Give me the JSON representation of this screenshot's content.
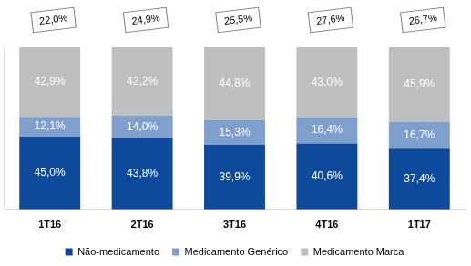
{
  "chart_data": {
    "type": "bar",
    "stacked": true,
    "categories": [
      "1T16",
      "2T16",
      "3T16",
      "4T16",
      "1T17"
    ],
    "series": [
      {
        "name": "Não-medicamento",
        "color": "#0d4a9b",
        "values": [
          45.0,
          43.8,
          39.9,
          40.6,
          37.4
        ],
        "value_labels": [
          "45,0%",
          "43,8%",
          "39,9%",
          "40,6%",
          "37,4%"
        ]
      },
      {
        "name": "Medicamento Genérico",
        "color": "#7f9fcf",
        "values": [
          12.1,
          14.0,
          15.3,
          16.4,
          16.7
        ],
        "value_labels": [
          "12,1%",
          "14,0%",
          "15,3%",
          "16,4%",
          "16,7%"
        ]
      },
      {
        "name": "Medicamento Marca",
        "color": "#bfbfbf",
        "values": [
          42.9,
          42.2,
          44.8,
          43.0,
          45.9
        ],
        "value_labels": [
          "42,9%",
          "42,2%",
          "44,8%",
          "43,0%",
          "45,9%"
        ]
      }
    ],
    "annotations": [
      "22,0%",
      "24,9%",
      "25,5%",
      "27,6%",
      "26,7%"
    ],
    "ylim": [
      0,
      100
    ],
    "grid": false,
    "legend": "bottom",
    "data_labels": true,
    "tick_labels": "x"
  }
}
